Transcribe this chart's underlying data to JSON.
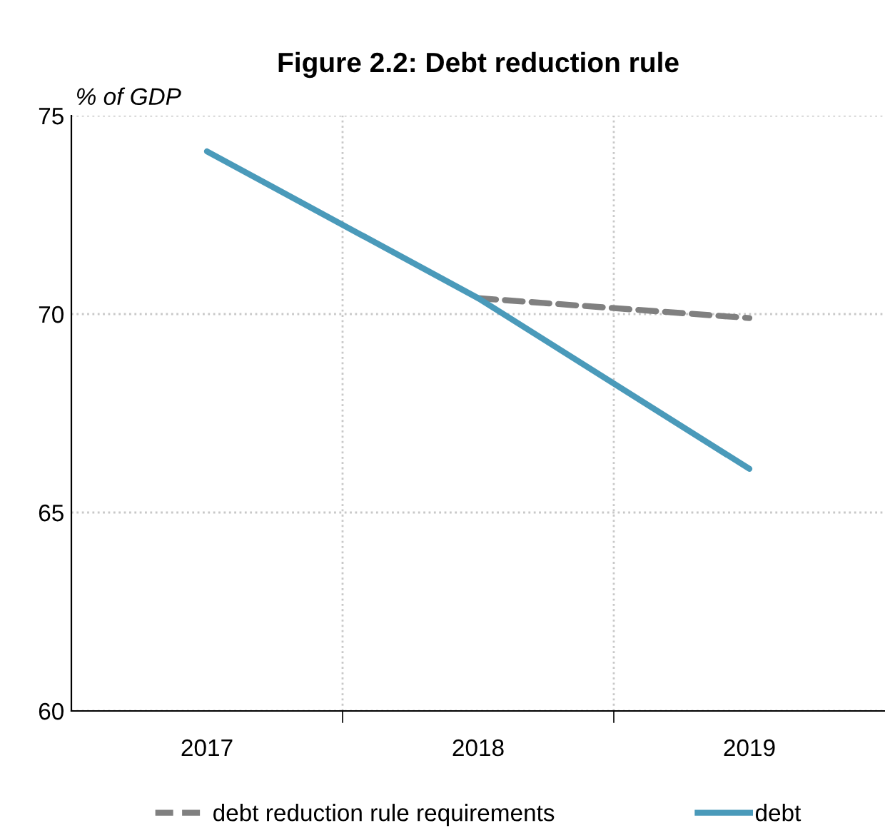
{
  "chart_data": {
    "type": "line",
    "title": "Figure 2.2: Debt reduction rule",
    "ylabel": "% of GDP",
    "categories": [
      "2017",
      "2018",
      "2019"
    ],
    "series": [
      {
        "name": "debt reduction rule requirements",
        "color": "#808080",
        "values": [
          null,
          70.4,
          69.9
        ],
        "line_style": "dashed"
      },
      {
        "name": "debt",
        "color": "#4a9aba",
        "values": [
          74.1,
          70.4,
          66.1
        ],
        "line_style": "solid"
      }
    ],
    "ylim": [
      60,
      75
    ],
    "yticks": [
      60,
      65,
      70,
      75
    ],
    "grid": true,
    "legend": "bottom",
    "marker": "none"
  }
}
